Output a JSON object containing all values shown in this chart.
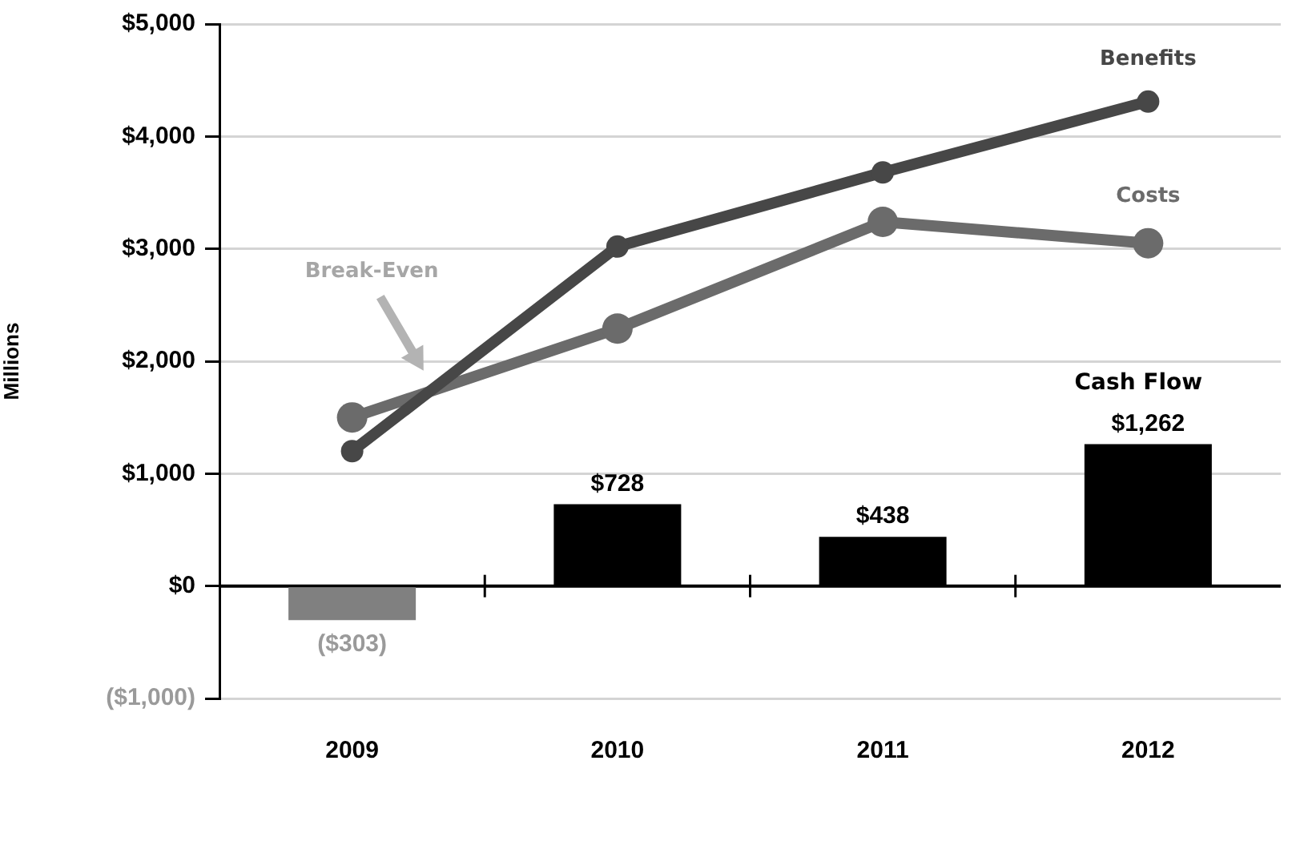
{
  "chart_data": {
    "type": "bar",
    "ylabel": "Millions",
    "categories": [
      "2009",
      "2010",
      "2011",
      "2012"
    ],
    "series": [
      {
        "name": "Cash Flow",
        "colors": [
          "#808080",
          "#000000",
          "#000000",
          "#000000"
        ],
        "values": [
          -303,
          728,
          438,
          1262
        ],
        "value_labels": [
          "($303)",
          "$728",
          "$438",
          "$1,262"
        ]
      },
      {
        "name": "Benefits",
        "type": "line",
        "color": "#474747",
        "values": [
          1200,
          3020,
          3680,
          4310
        ]
      },
      {
        "name": "Costs",
        "type": "line",
        "color": "#6b6b6b",
        "values": [
          1500,
          2290,
          3240,
          3050
        ]
      }
    ],
    "ylim": [
      -1000,
      5000
    ],
    "yticks": [
      {
        "value": -1000,
        "label": "($1,000)"
      },
      {
        "value": 0,
        "label": "$0"
      },
      {
        "value": 1000,
        "label": "$1,000"
      },
      {
        "value": 2000,
        "label": "$2,000"
      },
      {
        "value": 3000,
        "label": "$3,000"
      },
      {
        "value": 4000,
        "label": "$4,000"
      },
      {
        "value": 5000,
        "label": "$5,000"
      }
    ],
    "annotations": [
      "Break-Even"
    ],
    "grid": "y",
    "marker": "circle",
    "line_style": "solid"
  }
}
